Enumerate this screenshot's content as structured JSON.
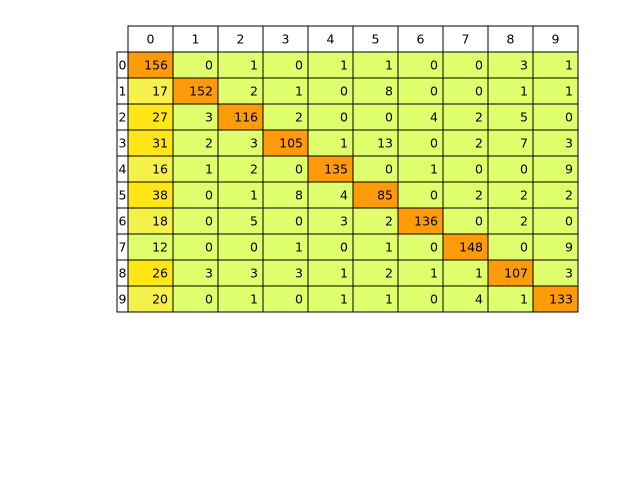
{
  "chart_data": {
    "type": "table",
    "title": "",
    "xlabel": "",
    "ylabel": "",
    "col_labels": [
      "0",
      "1",
      "2",
      "3",
      "4",
      "5",
      "6",
      "7",
      "8",
      "9"
    ],
    "row_labels": [
      "0",
      "1",
      "2",
      "3",
      "4",
      "5",
      "6",
      "7",
      "8",
      "9"
    ],
    "values": [
      [
        156,
        0,
        1,
        0,
        1,
        1,
        0,
        0,
        3,
        1
      ],
      [
        17,
        152,
        2,
        1,
        0,
        8,
        0,
        0,
        1,
        1
      ],
      [
        27,
        3,
        116,
        2,
        0,
        0,
        4,
        2,
        5,
        0
      ],
      [
        31,
        2,
        3,
        105,
        1,
        13,
        0,
        2,
        7,
        3
      ],
      [
        16,
        1,
        2,
        0,
        135,
        0,
        1,
        0,
        0,
        9
      ],
      [
        38,
        0,
        1,
        8,
        4,
        85,
        0,
        2,
        2,
        2
      ],
      [
        18,
        0,
        5,
        0,
        3,
        2,
        136,
        0,
        2,
        0
      ],
      [
        12,
        0,
        0,
        1,
        0,
        1,
        0,
        148,
        0,
        9
      ],
      [
        26,
        3,
        3,
        3,
        1,
        2,
        1,
        1,
        107,
        3
      ],
      [
        20,
        0,
        1,
        0,
        1,
        1,
        0,
        4,
        1,
        133
      ]
    ],
    "colors": {
      "diagonal": "#ff9a08",
      "low": "#e0ff6d",
      "mid": "#f5f04a",
      "high": "#ffe614",
      "border": "#000000",
      "header_bg": "#ffffff"
    }
  }
}
